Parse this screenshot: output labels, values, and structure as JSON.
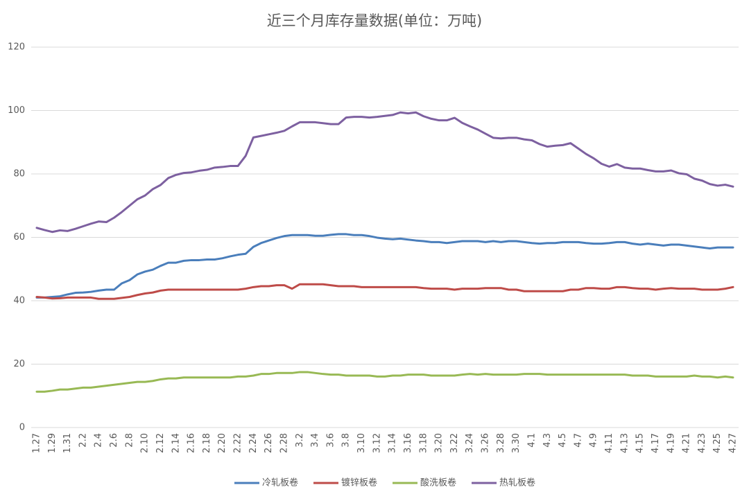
{
  "chart_data": {
    "type": "line",
    "title": "近三个月库存量数据(单位：万吨)",
    "categories": [
      "1.27",
      null,
      "1.29",
      null,
      "1.31",
      null,
      "2.2",
      null,
      "2.4",
      null,
      "2.6",
      null,
      "2.8",
      null,
      "2.10",
      null,
      "2.12",
      null,
      "2.14",
      null,
      "2.16",
      null,
      "2.18",
      null,
      "2.20",
      null,
      "2.22",
      null,
      "2.24",
      null,
      "2.26",
      null,
      "2.28",
      null,
      "3.2",
      null,
      "3.4",
      null,
      "3.6",
      null,
      "3.8",
      null,
      "3.10",
      null,
      "3.12",
      null,
      "3.14",
      null,
      "3.16",
      null,
      "3.18",
      null,
      "3.20",
      null,
      "3.22",
      null,
      "3.24",
      null,
      "3.26",
      null,
      "3.28",
      null,
      "3.30",
      null,
      "4.1",
      null,
      "4.3",
      null,
      "4.5",
      null,
      "4.7",
      null,
      "4.9",
      null,
      "4.11",
      null,
      "4.13",
      null,
      "4.15",
      null,
      "4.17",
      null,
      "4.19",
      null,
      "4.21",
      null,
      "4.23",
      null,
      "4.25",
      null,
      "4.27"
    ],
    "series": [
      {
        "name": "冷轧板卷",
        "color": "#4a7ebb",
        "values": [
          41.0,
          41.0,
          41.2,
          41.4,
          42.0,
          42.5,
          42.6,
          42.8,
          43.2,
          43.5,
          43.5,
          45.5,
          46.5,
          48.3,
          49.2,
          49.8,
          51.0,
          52.0,
          52.0,
          52.6,
          52.8,
          52.8,
          53.0,
          53.0,
          53.4,
          54.0,
          54.5,
          54.8,
          57.0,
          58.2,
          59.0,
          59.8,
          60.4,
          60.7,
          60.7,
          60.7,
          60.5,
          60.5,
          60.8,
          61.0,
          61.0,
          60.7,
          60.7,
          60.4,
          59.9,
          59.6,
          59.4,
          59.6,
          59.3,
          59.0,
          58.8,
          58.5,
          58.5,
          58.2,
          58.5,
          58.8,
          58.8,
          58.8,
          58.5,
          58.8,
          58.5,
          58.8,
          58.8,
          58.5,
          58.2,
          58.0,
          58.2,
          58.2,
          58.5,
          58.5,
          58.5,
          58.2,
          58.0,
          58.0,
          58.2,
          58.5,
          58.5,
          58.0,
          57.7,
          58.0,
          57.7,
          57.4,
          57.7,
          57.7,
          57.4,
          57.1,
          56.8,
          56.5,
          56.8,
          56.8,
          56.8
        ]
      },
      {
        "name": "镀锌板卷",
        "color": "#be4b48",
        "values": [
          41.2,
          41.0,
          40.7,
          40.8,
          41.0,
          41.0,
          41.0,
          41.0,
          40.6,
          40.6,
          40.6,
          40.9,
          41.2,
          41.8,
          42.3,
          42.6,
          43.2,
          43.5,
          43.5,
          43.5,
          43.5,
          43.5,
          43.5,
          43.5,
          43.5,
          43.5,
          43.5,
          43.8,
          44.3,
          44.6,
          44.6,
          44.9,
          44.9,
          43.8,
          45.2,
          45.2,
          45.2,
          45.2,
          44.9,
          44.6,
          44.6,
          44.6,
          44.3,
          44.3,
          44.3,
          44.3,
          44.3,
          44.3,
          44.3,
          44.3,
          44.0,
          43.8,
          43.8,
          43.8,
          43.5,
          43.8,
          43.8,
          43.8,
          44.0,
          44.0,
          44.0,
          43.5,
          43.5,
          43.0,
          43.0,
          43.0,
          43.0,
          43.0,
          43.0,
          43.5,
          43.5,
          44.0,
          44.0,
          43.8,
          43.8,
          44.3,
          44.3,
          44.0,
          43.8,
          43.8,
          43.5,
          43.8,
          44.0,
          43.8,
          43.8,
          43.8,
          43.5,
          43.5,
          43.5,
          43.8,
          44.3
        ]
      },
      {
        "name": "酸洗板卷",
        "color": "#98b954",
        "values": [
          11.3,
          11.3,
          11.6,
          12.0,
          12.0,
          12.3,
          12.6,
          12.6,
          12.9,
          13.2,
          13.5,
          13.8,
          14.1,
          14.4,
          14.4,
          14.7,
          15.2,
          15.5,
          15.5,
          15.8,
          15.8,
          15.8,
          15.8,
          15.8,
          15.8,
          15.8,
          16.1,
          16.1,
          16.4,
          16.9,
          16.9,
          17.2,
          17.2,
          17.2,
          17.5,
          17.5,
          17.2,
          16.9,
          16.7,
          16.7,
          16.4,
          16.4,
          16.4,
          16.4,
          16.1,
          16.1,
          16.4,
          16.4,
          16.7,
          16.7,
          16.7,
          16.4,
          16.4,
          16.4,
          16.4,
          16.7,
          16.9,
          16.7,
          16.9,
          16.7,
          16.7,
          16.7,
          16.7,
          16.9,
          16.9,
          16.9,
          16.7,
          16.7,
          16.7,
          16.7,
          16.7,
          16.7,
          16.7,
          16.7,
          16.7,
          16.7,
          16.7,
          16.4,
          16.4,
          16.4,
          16.1,
          16.1,
          16.1,
          16.1,
          16.1,
          16.4,
          16.1,
          16.1,
          15.8,
          16.1,
          15.8
        ]
      },
      {
        "name": "热轧板卷",
        "color": "#7d60a0",
        "values": [
          63.0,
          62.3,
          61.7,
          62.2,
          62.0,
          62.7,
          63.5,
          64.3,
          65.0,
          64.8,
          66.2,
          68.0,
          70.0,
          72.0,
          73.2,
          75.2,
          76.5,
          78.7,
          79.7,
          80.3,
          80.5,
          81.0,
          81.3,
          82.0,
          82.2,
          82.5,
          82.5,
          85.7,
          91.5,
          92.0,
          92.5,
          93.0,
          93.6,
          95.0,
          96.3,
          96.3,
          96.3,
          96.0,
          95.7,
          95.7,
          97.8,
          98.0,
          98.0,
          97.8,
          98.0,
          98.3,
          98.6,
          99.4,
          99.1,
          99.4,
          98.2,
          97.4,
          96.9,
          96.9,
          97.7,
          96.1,
          95.0,
          94.0,
          92.7,
          91.4,
          91.2,
          91.4,
          91.4,
          90.9,
          90.6,
          89.4,
          88.6,
          88.9,
          89.1,
          89.7,
          88.0,
          86.3,
          84.9,
          83.2,
          82.3,
          83.1,
          82.0,
          81.7,
          81.7,
          81.2,
          80.8,
          80.8,
          81.1,
          80.2,
          79.9,
          78.5,
          77.9,
          76.8,
          76.3,
          76.6,
          76.0
        ]
      }
    ],
    "ylim": [
      0,
      120
    ],
    "yticks": [
      0,
      20,
      40,
      60,
      80,
      100,
      120
    ],
    "grid": true,
    "legend": "bottom"
  }
}
